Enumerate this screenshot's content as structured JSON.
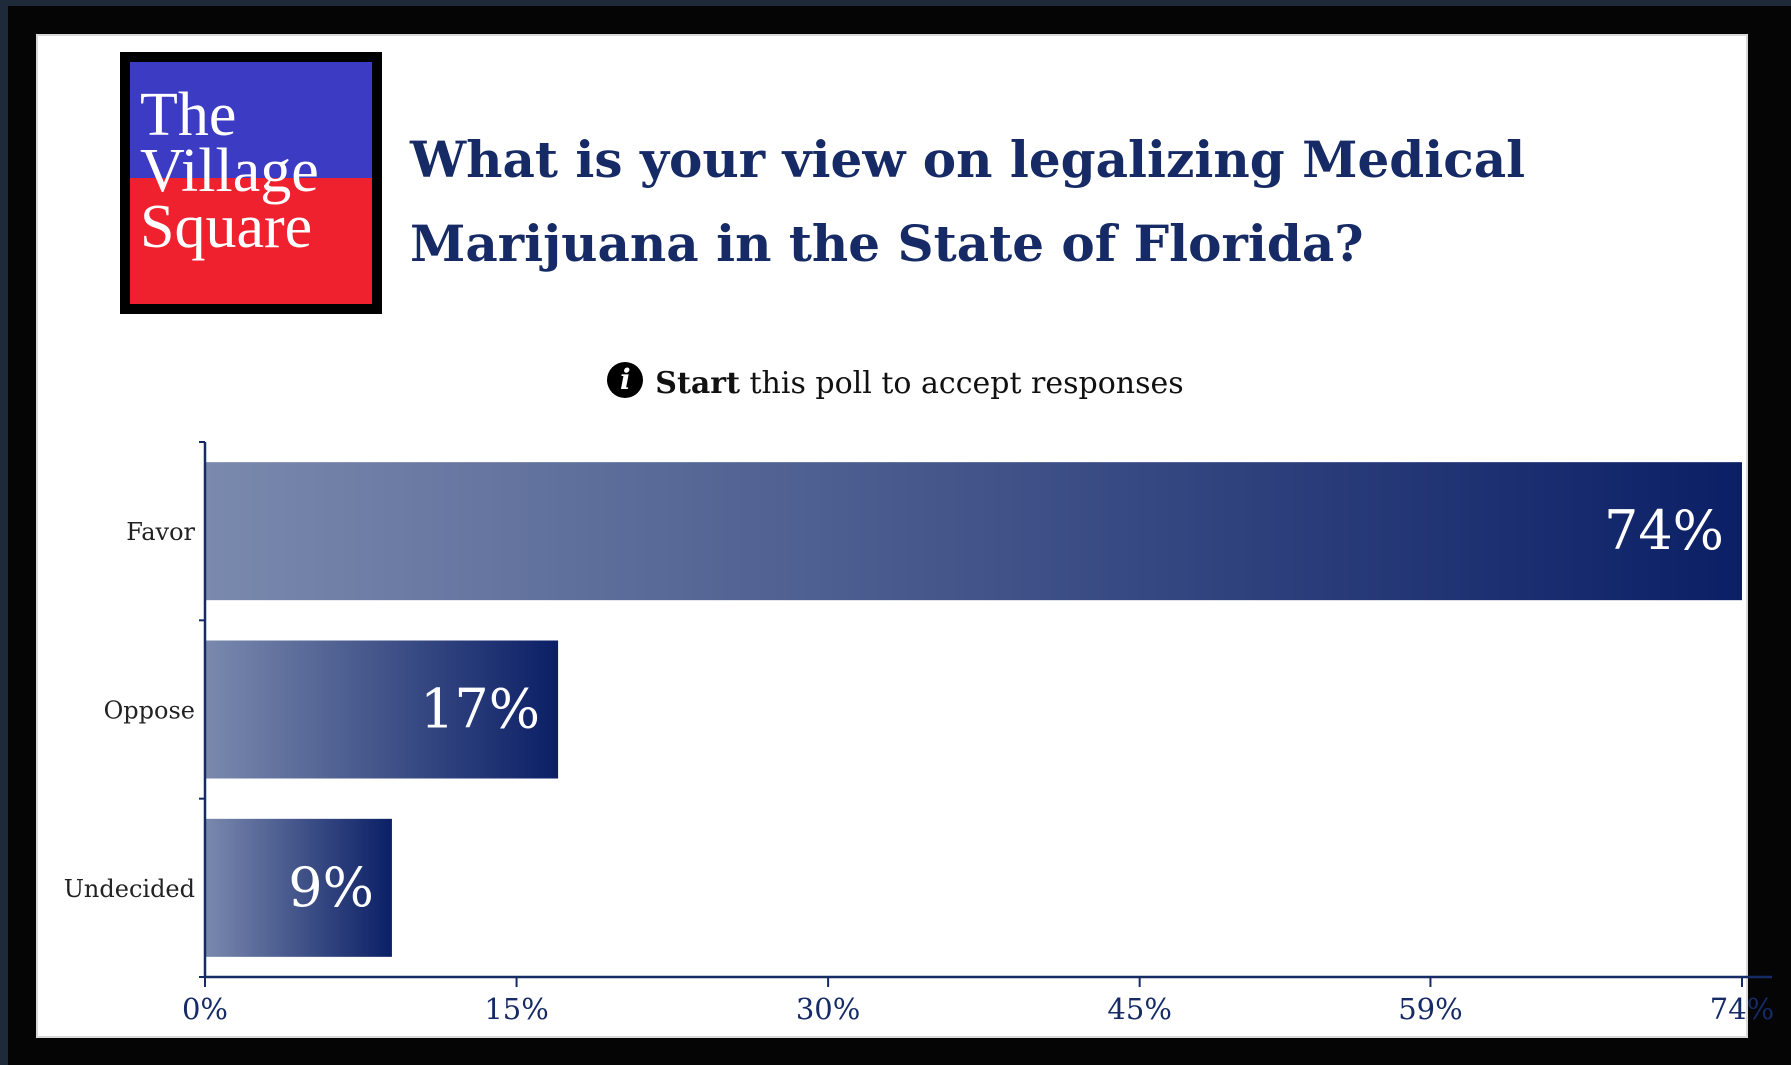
{
  "logo": {
    "lines": [
      "The",
      "Village",
      "Square"
    ],
    "colors": {
      "top": "#3b3bc4",
      "bottom": "#f0212e",
      "border": "#000000"
    }
  },
  "poll": {
    "title": "What is your view on legalizing Medical Marijuana in the State of Florida?",
    "notice_strong": "Start",
    "notice_rest": "this poll to accept responses",
    "notice_icon": "info-icon"
  },
  "colors": {
    "title": "#162a66",
    "axis": "#162a66",
    "bar_dark": "#0b1f66",
    "bar_light": "#7a89ad"
  },
  "chart_data": {
    "type": "bar",
    "orientation": "horizontal",
    "categories": [
      "Favor",
      "Oppose",
      "Undecided"
    ],
    "values": [
      74,
      17,
      9
    ],
    "value_labels": [
      "74%",
      "17%",
      "9%"
    ],
    "xlim": [
      0,
      74
    ],
    "x_ticks": [
      0,
      15,
      30,
      45,
      59,
      74
    ],
    "x_tick_labels": [
      "0%",
      "15%",
      "30%",
      "45%",
      "59%",
      "74%"
    ],
    "unit": "%",
    "grid": false,
    "legend": "none"
  }
}
